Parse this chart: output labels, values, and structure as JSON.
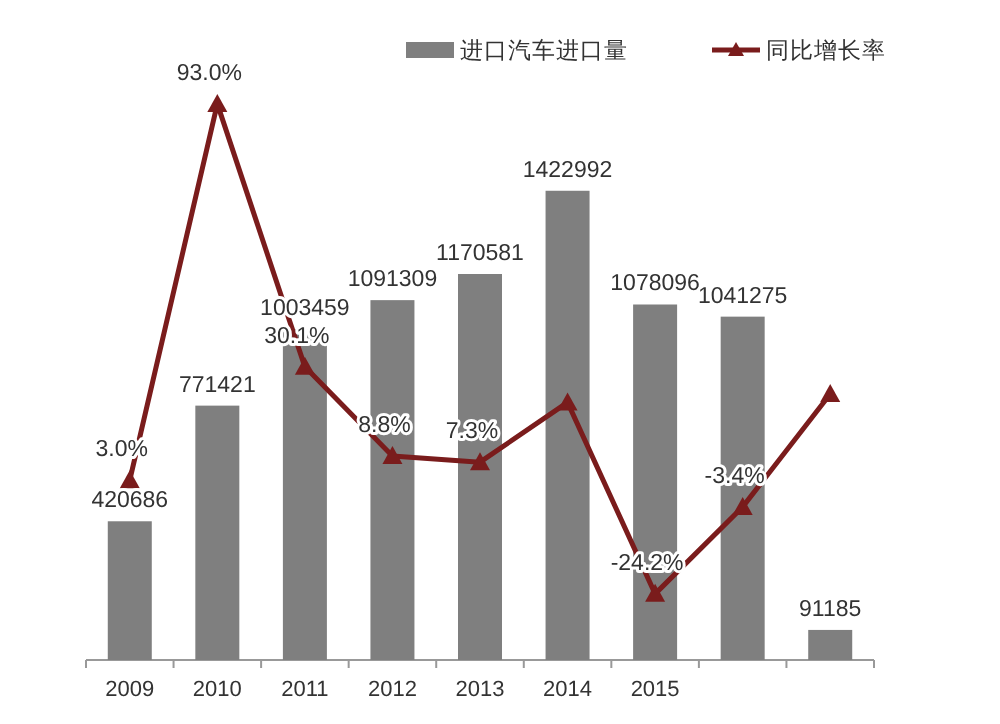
{
  "chart_data": {
    "type": "bar",
    "categories": [
      "2009",
      "2010",
      "2011",
      "2012",
      "2013",
      "2014",
      "2015",
      null,
      null
    ],
    "series": [
      {
        "name": "进口汽车进口量",
        "color": "#7f7f7f",
        "values": [
          420686,
          771421,
          1003459,
          1091309,
          1170581,
          1422992,
          1078096,
          1041275,
          91185
        ]
      },
      {
        "name": "同比增长率",
        "type": "line",
        "axis": "y2",
        "color": "#7a1c1c",
        "marker": "triangle",
        "values": [
          3.0,
          93.0,
          30.1,
          8.8,
          7.3,
          21.6,
          -24.2,
          -3.4,
          23.6
        ],
        "value_labels": [
          "3.0%",
          "93.0%",
          "30.1%",
          "8.8%",
          "7.3%",
          null,
          "-24.2%",
          "-3.4%",
          null
        ]
      }
    ],
    "data_labels": true,
    "tick_labels": "x",
    "legend": "top right"
  }
}
